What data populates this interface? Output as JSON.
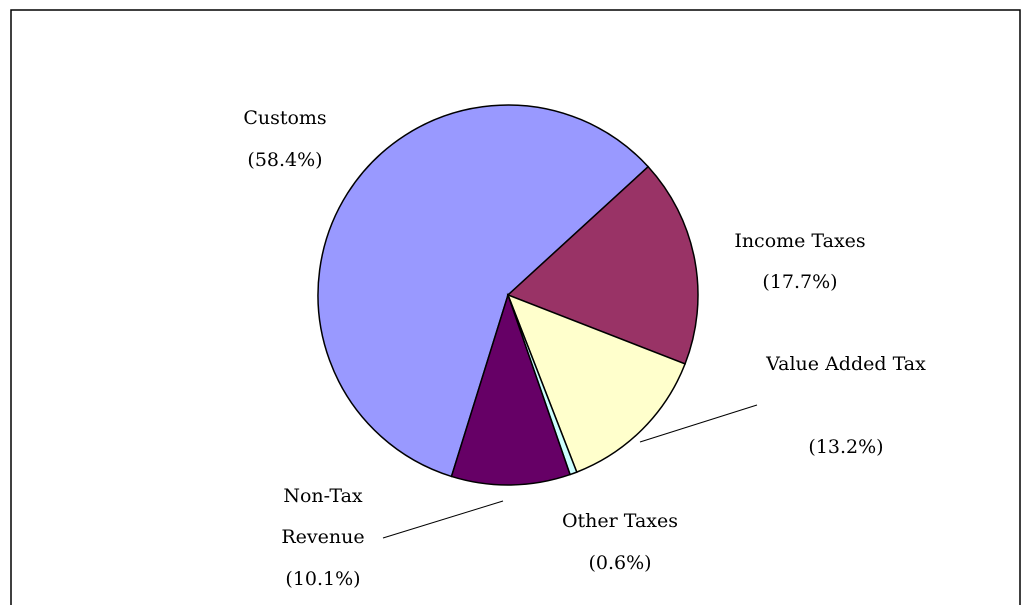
{
  "chart_data": {
    "type": "pie",
    "categories": [
      "Customs",
      "Income Taxes",
      "Value Added Tax",
      "Other Taxes",
      "Non-Tax Revenue"
    ],
    "values": [
      58.4,
      17.7,
      13.2,
      0.6,
      10.1
    ],
    "value_labels": [
      "(58.4%)",
      "(17.7%)",
      "(13.2%)",
      "(0.6%)",
      "(10.1%)"
    ],
    "colors": [
      "#9999ff",
      "#993366",
      "#ffffcc",
      "#ccffff",
      "#660066"
    ]
  }
}
